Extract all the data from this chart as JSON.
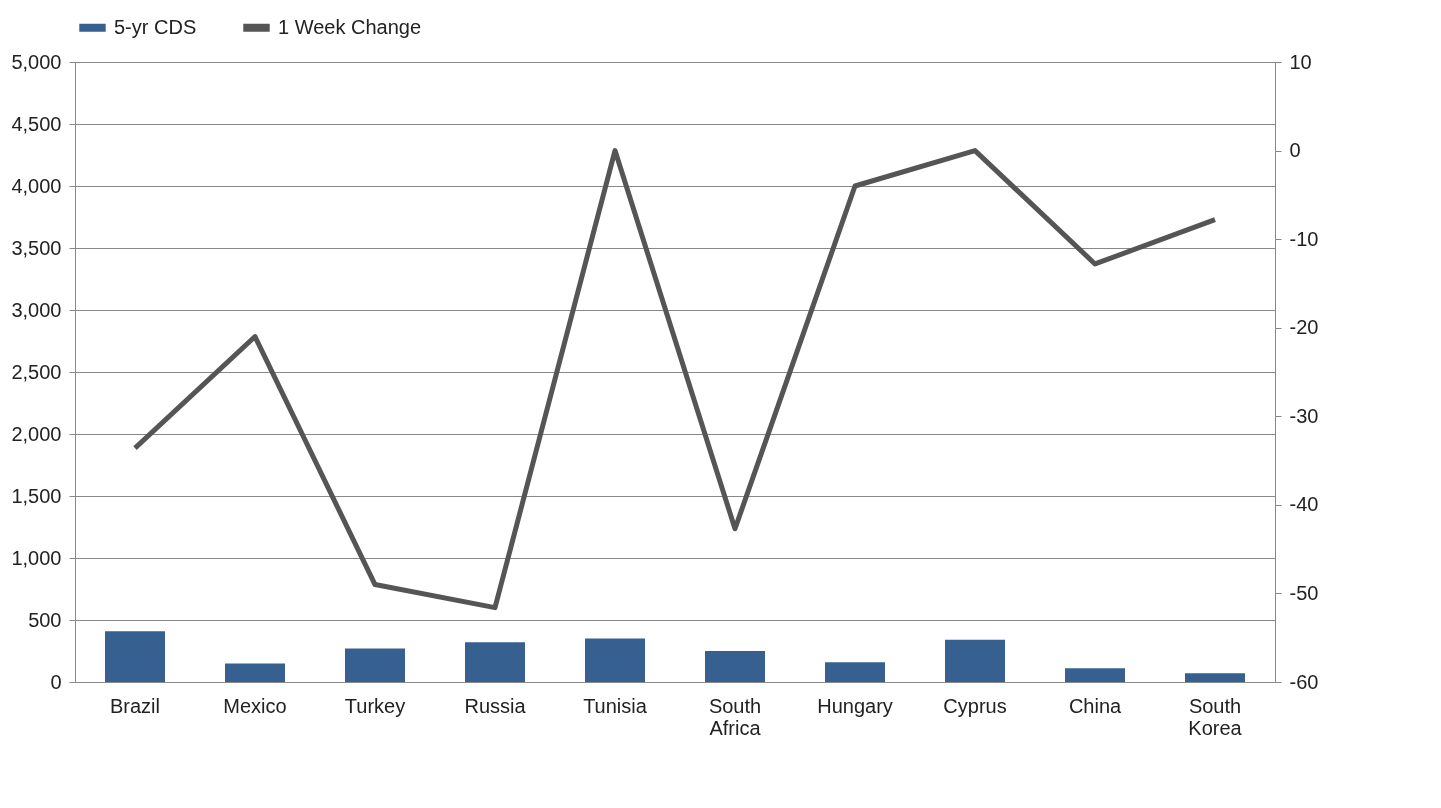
{
  "chart_data": {
    "type": "bar",
    "categories": [
      "Brazil",
      "Mexico",
      "Turkey",
      "Russia",
      "Tunisia",
      "South Africa",
      "Hungary",
      "Cyprus",
      "China",
      "South Korea"
    ],
    "series": [
      {
        "name": "5-yr CDS",
        "color": "#36608f",
        "values": [
          410,
          150,
          270,
          320,
          350,
          250,
          160,
          340,
          110,
          70
        ]
      },
      {
        "name": "1 Week Change",
        "type": "line",
        "axis": "y2",
        "color": "#555555",
        "values": [
          -33.6,
          -21,
          -49,
          -51.6,
          0,
          -42.7,
          -4,
          0,
          -12.8,
          -7.8
        ]
      }
    ],
    "ylim": [
      0,
      5000
    ],
    "yticks": [
      0,
      {
        "value": 500,
        "label": "500"
      },
      {
        "value": 1000,
        "label": "1,000"
      },
      {
        "value": 1500,
        "label": "1,500"
      },
      {
        "value": 2000,
        "label": "2,000"
      },
      {
        "value": 2500,
        "label": "2,500"
      },
      {
        "value": 3000,
        "label": "3,000"
      },
      {
        "value": 3500,
        "label": "3,500"
      },
      {
        "value": 4000,
        "label": "4,000"
      },
      {
        "value": 4500,
        "label": "4,500"
      },
      {
        "value": 5000,
        "label": "5,000"
      }
    ],
    "y2lim": [
      -60,
      10
    ],
    "y2ticks": [
      -60,
      -50,
      -40,
      -30,
      -20,
      -10,
      0,
      10
    ],
    "grid": "y",
    "legend": "top left",
    "marker": "none",
    "line_style": "solid"
  }
}
